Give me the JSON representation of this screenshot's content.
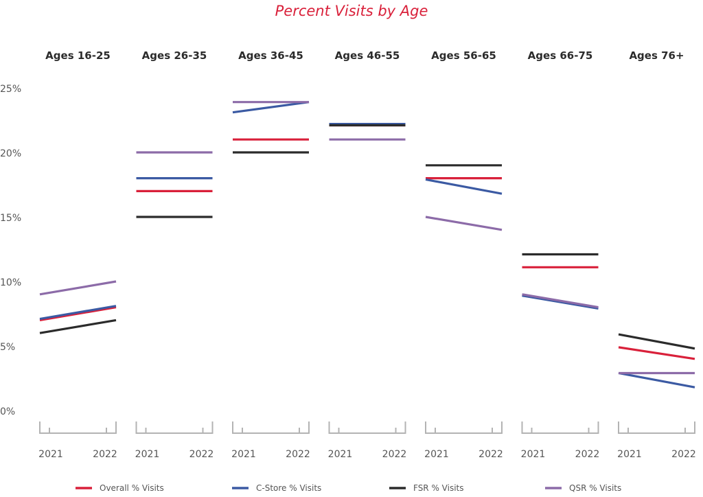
{
  "chart_data": {
    "type": "line",
    "title": "Percent Visits by Age",
    "panels": [
      "Ages 16-25",
      "Ages 26-35",
      "Ages 36-45",
      "Ages 46-55",
      "Ages 56-65",
      "Ages 66-75",
      "Ages 76+"
    ],
    "x": [
      "2021",
      "2022"
    ],
    "ylim": [
      0,
      25
    ],
    "yticks": [
      0,
      5,
      10,
      15,
      20,
      25
    ],
    "ytick_labels": [
      "0%",
      "5%",
      "10%",
      "15%",
      "20%",
      "25%"
    ],
    "grid": false,
    "legend_position": "bottom",
    "series": [
      {
        "name": "Overall % Visits",
        "color": "#d9203a",
        "values": [
          [
            7,
            8
          ],
          [
            17,
            17
          ],
          [
            21,
            21
          ],
          [
            22.1,
            22.1
          ],
          [
            18,
            18
          ],
          [
            11.1,
            11.1
          ],
          [
            4.9,
            4
          ]
        ]
      },
      {
        "name": "C-Store % Visits",
        "color": "#3b5aa3",
        "values": [
          [
            7.1,
            8.1
          ],
          [
            18,
            18
          ],
          [
            23.1,
            23.9
          ],
          [
            22.2,
            22.2
          ],
          [
            17.9,
            16.8
          ],
          [
            8.9,
            7.9
          ],
          [
            2.9,
            1.8
          ]
        ]
      },
      {
        "name": "FSR % Visits",
        "color": "#2b2b2b",
        "values": [
          [
            6,
            7
          ],
          [
            15,
            15
          ],
          [
            20,
            20
          ],
          [
            22.1,
            22.1
          ],
          [
            19,
            19
          ],
          [
            12.1,
            12.1
          ],
          [
            5.9,
            4.8
          ]
        ]
      },
      {
        "name": "QSR % Visits",
        "color": "#8c6ba8",
        "values": [
          [
            9,
            10
          ],
          [
            20,
            20
          ],
          [
            23.9,
            23.9
          ],
          [
            21,
            21
          ],
          [
            15,
            14
          ],
          [
            9,
            8
          ],
          [
            2.9,
            2.9
          ]
        ]
      }
    ]
  }
}
